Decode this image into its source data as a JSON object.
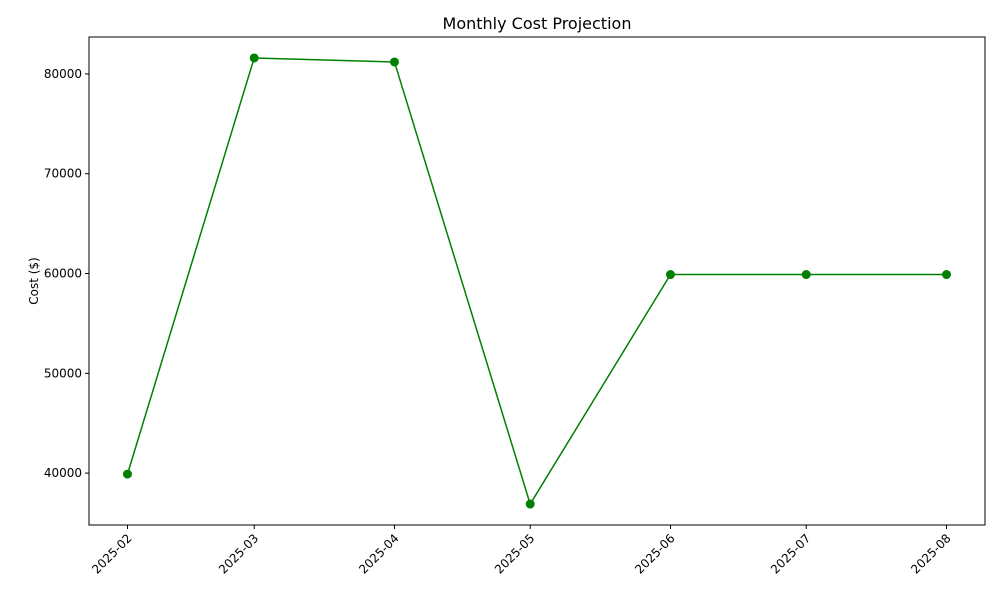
{
  "chart_data": {
    "type": "line",
    "title": "Monthly Cost Projection",
    "xlabel": "",
    "ylabel": "Cost ($)",
    "x": [
      "2025-02",
      "2025-03",
      "2025-04",
      "2025-05",
      "2025-06",
      "2025-07",
      "2025-08"
    ],
    "series": [
      {
        "values": [
          39900,
          81600,
          81200,
          36900,
          59900,
          59900,
          59900
        ],
        "color": "#008000",
        "marker": "circle"
      }
    ],
    "ylim": [
      34800,
      83700
    ],
    "yticks": [
      40000,
      50000,
      60000,
      70000,
      80000
    ],
    "x_tick_rotation": 45,
    "grid": false,
    "legend": "none"
  }
}
